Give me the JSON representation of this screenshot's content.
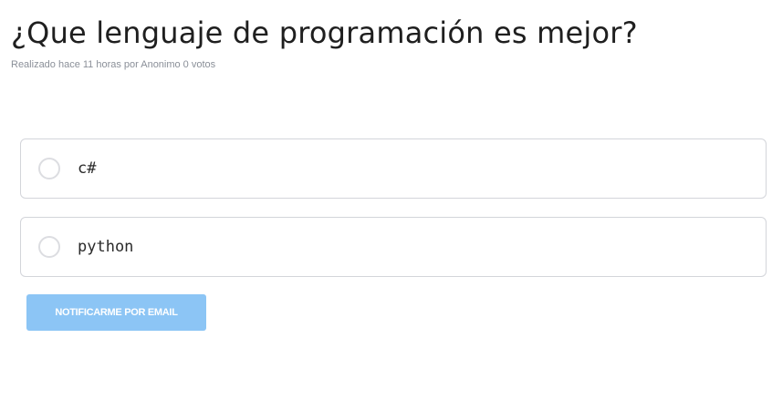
{
  "poll": {
    "title": "¿Que lenguaje de programación es mejor?",
    "meta": {
      "created": "Realizado hace 11 horas",
      "author": "por Anonimo",
      "votes": "0 votos"
    },
    "options": [
      {
        "label": "c#"
      },
      {
        "label": "python"
      }
    ],
    "notify_label": "NOTIFICARME POR EMAIL"
  },
  "colors": {
    "button_bg": "#8cc5f5",
    "title": "#1f1f1f",
    "meta": "#8a8f98",
    "border": "#d3d5da"
  }
}
